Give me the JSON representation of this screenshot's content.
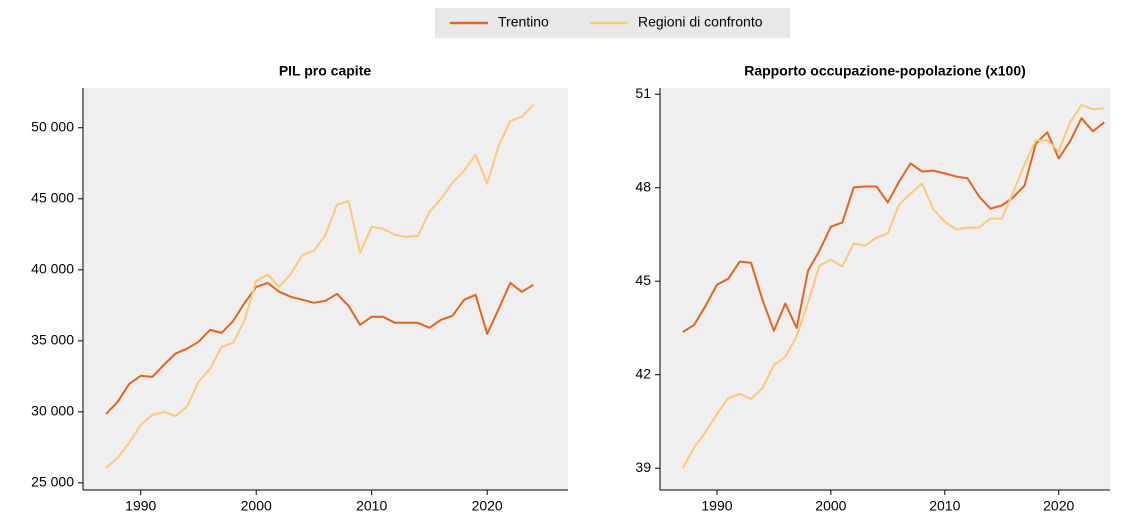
{
  "chart_data": [
    {
      "type": "line",
      "title": "PIL pro capite",
      "x": [
        1987,
        1988,
        1989,
        1990,
        1991,
        1992,
        1993,
        1994,
        1995,
        1996,
        1997,
        1998,
        1999,
        2000,
        2001,
        2002,
        2003,
        2004,
        2005,
        2006,
        2007,
        2008,
        2009,
        2010,
        2011,
        2012,
        2013,
        2014,
        2015,
        2016,
        2017,
        2018,
        2019,
        2020,
        2021,
        2022,
        2023,
        2024
      ],
      "series": [
        {
          "name": "Trentino",
          "color": "#e8641c",
          "values": [
            29860,
            30700,
            31970,
            32540,
            32460,
            33300,
            34100,
            34440,
            34930,
            35770,
            35560,
            36400,
            37680,
            38800,
            39080,
            38450,
            38100,
            37900,
            37680,
            37820,
            38310,
            37460,
            36130,
            36690,
            36690,
            36270,
            36270,
            36270,
            35920,
            36480,
            36760,
            37890,
            38240,
            35490,
            37250,
            39080,
            38450,
            38940
          ]
        },
        {
          "name": "Regioni di confronto",
          "color": "#fdc878",
          "values": [
            26060,
            26760,
            27820,
            29080,
            29790,
            30000,
            29720,
            30350,
            32110,
            33030,
            34580,
            34860,
            36480,
            39230,
            39650,
            38800,
            39720,
            41060,
            41340,
            42460,
            44580,
            44860,
            41200,
            43030,
            42890,
            42460,
            42320,
            42390,
            44080,
            45000,
            46130,
            46970,
            48100,
            46060,
            48730,
            50490,
            50770,
            51620
          ]
        }
      ],
      "xlim": [
        1985,
        2027
      ],
      "xticks": [
        1990,
        2000,
        2010,
        2020
      ],
      "ylim": [
        24500,
        52800
      ],
      "yticks": [
        {
          "value": 25000,
          "label": "25 000"
        },
        {
          "value": 30000,
          "label": "30 000"
        },
        {
          "value": 35000,
          "label": "35 000"
        },
        {
          "value": 40000,
          "label": "40 000"
        },
        {
          "value": 45000,
          "label": "45 000"
        },
        {
          "value": 50000,
          "label": "50 000"
        }
      ]
    },
    {
      "type": "line",
      "title": "Rapporto occupazione-popolazione (x100)",
      "x": [
        1987,
        1988,
        1989,
        1990,
        1991,
        1992,
        1993,
        1994,
        1995,
        1996,
        1997,
        1998,
        1999,
        2000,
        2001,
        2002,
        2003,
        2004,
        2005,
        2006,
        2007,
        2008,
        2009,
        2010,
        2011,
        2012,
        2013,
        2014,
        2015,
        2016,
        2017,
        2018,
        2019,
        2020,
        2021,
        2022,
        2023,
        2024
      ],
      "series": [
        {
          "color": "#e8641c",
          "values": [
            43.37,
            43.6,
            44.21,
            44.89,
            45.08,
            45.63,
            45.59,
            44.4,
            43.41,
            44.28,
            43.5,
            45.34,
            45.98,
            46.75,
            46.88,
            48.01,
            48.04,
            48.04,
            47.53,
            48.2,
            48.78,
            48.52,
            48.55,
            48.46,
            48.36,
            48.3,
            47.72,
            47.33,
            47.43,
            47.69,
            48.07,
            49.42,
            49.78,
            48.94,
            49.49,
            50.23,
            49.81,
            50.1
          ]
        },
        {
          "color": "#fdc878",
          "values": [
            39.0,
            39.67,
            40.16,
            40.74,
            41.25,
            41.38,
            41.22,
            41.57,
            42.31,
            42.57,
            43.24,
            44.31,
            45.5,
            45.69,
            45.47,
            46.21,
            46.14,
            46.4,
            46.53,
            47.46,
            47.81,
            48.14,
            47.3,
            46.91,
            46.66,
            46.72,
            46.72,
            47.01,
            47.01,
            47.85,
            48.75,
            49.52,
            49.52,
            49.17,
            50.1,
            50.65,
            50.52,
            50.55
          ]
        }
      ],
      "xlim": [
        1985,
        2024.5
      ],
      "xticks": [
        1990,
        2000,
        2010,
        2020
      ],
      "ylim": [
        38.3,
        51.2
      ],
      "yticks": [
        39,
        42,
        45,
        48,
        51
      ]
    }
  ]
}
